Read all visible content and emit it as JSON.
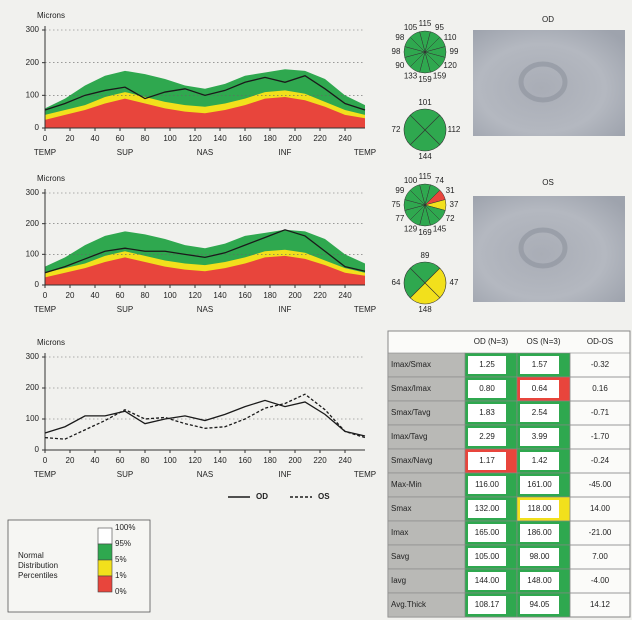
{
  "chart_data": [
    {
      "type": "line",
      "y_label": "Microns",
      "x": [
        0,
        16,
        32,
        48,
        64,
        80,
        96,
        112,
        128,
        144,
        160,
        176,
        192,
        208,
        224,
        240,
        256
      ],
      "xlim": [
        0,
        256
      ],
      "ylim": [
        0,
        300
      ],
      "xticks": [
        0,
        20,
        40,
        60,
        80,
        100,
        120,
        140,
        160,
        180,
        200,
        220,
        240
      ],
      "yticks": [
        0,
        100,
        200,
        300
      ],
      "region_ticks": [
        {
          "value": 0,
          "label": "TEMP"
        },
        {
          "value": 64,
          "label": "SUP"
        },
        {
          "value": 128,
          "label": "NAS"
        },
        {
          "value": 192,
          "label": "INF"
        },
        {
          "value": 256,
          "label": "TEMP"
        }
      ],
      "grid": true,
      "bands": [
        {
          "color": "#2fa84f",
          "values": [
            60,
            90,
            130,
            160,
            175,
            165,
            150,
            130,
            120,
            135,
            160,
            170,
            180,
            175,
            150,
            100,
            70
          ]
        },
        {
          "color": "#f2e01c",
          "values": [
            40,
            55,
            70,
            95,
            110,
            95,
            80,
            70,
            65,
            75,
            90,
            110,
            115,
            105,
            80,
            55,
            40
          ]
        },
        {
          "color": "#e8453c",
          "values": [
            25,
            40,
            55,
            75,
            90,
            75,
            60,
            50,
            45,
            55,
            70,
            90,
            95,
            85,
            65,
            40,
            30
          ]
        }
      ],
      "series": [
        {
          "name": "OD",
          "color": "#1a1a1a",
          "dash": false,
          "values": [
            55,
            75,
            100,
            115,
            125,
            90,
            110,
            120,
            100,
            115,
            140,
            155,
            140,
            160,
            120,
            75,
            55
          ]
        }
      ]
    },
    {
      "type": "line",
      "y_label": "Microns",
      "x": [
        0,
        16,
        32,
        48,
        64,
        80,
        96,
        112,
        128,
        144,
        160,
        176,
        192,
        208,
        224,
        240,
        256
      ],
      "xlim": [
        0,
        256
      ],
      "ylim": [
        0,
        300
      ],
      "xticks": [
        0,
        20,
        40,
        60,
        80,
        100,
        120,
        140,
        160,
        180,
        200,
        220,
        240
      ],
      "yticks": [
        0,
        100,
        200,
        300
      ],
      "region_ticks": [
        {
          "value": 0,
          "label": "TEMP"
        },
        {
          "value": 64,
          "label": "SUP"
        },
        {
          "value": 128,
          "label": "NAS"
        },
        {
          "value": 192,
          "label": "INF"
        },
        {
          "value": 256,
          "label": "TEMP"
        }
      ],
      "grid": true,
      "bands": [
        {
          "color": "#2fa84f",
          "values": [
            60,
            90,
            130,
            160,
            175,
            165,
            150,
            130,
            120,
            135,
            160,
            170,
            180,
            175,
            150,
            100,
            70
          ]
        },
        {
          "color": "#f2e01c",
          "values": [
            40,
            55,
            70,
            95,
            110,
            95,
            80,
            70,
            65,
            75,
            90,
            110,
            115,
            105,
            80,
            55,
            40
          ]
        },
        {
          "color": "#e8453c",
          "values": [
            25,
            40,
            55,
            75,
            90,
            75,
            60,
            50,
            45,
            55,
            70,
            90,
            95,
            85,
            65,
            40,
            30
          ]
        }
      ],
      "series": [
        {
          "name": "OS",
          "color": "#1a1a1a",
          "dash": false,
          "values": [
            40,
            60,
            85,
            110,
            120,
            110,
            110,
            100,
            90,
            105,
            130,
            155,
            180,
            160,
            110,
            60,
            45
          ]
        }
      ]
    },
    {
      "type": "line",
      "y_label": "Microns",
      "x": [
        0,
        16,
        32,
        48,
        64,
        80,
        96,
        112,
        128,
        144,
        160,
        176,
        192,
        208,
        224,
        240,
        256
      ],
      "xlim": [
        0,
        256
      ],
      "ylim": [
        0,
        300
      ],
      "xticks": [
        0,
        20,
        40,
        60,
        80,
        100,
        120,
        140,
        160,
        180,
        200,
        220,
        240
      ],
      "yticks": [
        0,
        100,
        200,
        300
      ],
      "region_ticks": [
        {
          "value": 0,
          "label": "TEMP"
        },
        {
          "value": 64,
          "label": "SUP"
        },
        {
          "value": 128,
          "label": "NAS"
        },
        {
          "value": 192,
          "label": "INF"
        },
        {
          "value": 256,
          "label": "TEMP"
        }
      ],
      "grid": true,
      "bands": [],
      "series": [
        {
          "name": "OD",
          "color": "#1a1a1a",
          "dash": false,
          "values": [
            55,
            75,
            110,
            110,
            125,
            85,
            100,
            110,
            95,
            115,
            140,
            160,
            140,
            155,
            115,
            60,
            45
          ]
        },
        {
          "name": "OS",
          "color": "#1a1a1a",
          "dash": true,
          "values": [
            40,
            35,
            65,
            95,
            130,
            100,
            105,
            85,
            70,
            75,
            100,
            135,
            150,
            180,
            130,
            60,
            40
          ]
        }
      ]
    }
  ],
  "sector_diagrams": [
    {
      "clock": {
        "values": [
          115,
          95,
          110,
          99,
          120,
          159,
          159,
          133,
          90,
          98,
          98,
          105
        ],
        "colors": [
          "#2fa84f",
          "#2fa84f",
          "#2fa84f",
          "#2fa84f",
          "#2fa84f",
          "#2fa84f",
          "#2fa84f",
          "#2fa84f",
          "#2fa84f",
          "#2fa84f",
          "#2fa84f",
          "#2fa84f"
        ]
      },
      "quadrants": {
        "values": [
          101,
          112,
          144,
          72
        ],
        "colors": [
          "#2fa84f",
          "#2fa84f",
          "#2fa84f",
          "#2fa84f"
        ]
      }
    },
    {
      "clock": {
        "values": [
          115,
          74,
          31,
          37,
          72,
          145,
          169,
          129,
          77,
          75,
          99,
          100
        ],
        "colors": [
          "#2fa84f",
          "#2fa84f",
          "#e8453c",
          "#f2e01c",
          "#2fa84f",
          "#2fa84f",
          "#2fa84f",
          "#2fa84f",
          "#2fa84f",
          "#2fa84f",
          "#2fa84f",
          "#2fa84f"
        ]
      },
      "quadrants": {
        "values": [
          89,
          47,
          148,
          64
        ],
        "colors": [
          "#2fa84f",
          "#f2e01c",
          "#f2e01c",
          "#2fa84f"
        ]
      }
    }
  ],
  "images": [
    {
      "label": "OD"
    },
    {
      "label": "OS"
    }
  ],
  "table": {
    "header": [
      "OD (N=3)",
      "OS (N=3)",
      "OD-OS"
    ],
    "rows": [
      {
        "cells": [
          "Imax/Smax",
          "1.25",
          "1.57",
          "-0.32"
        ],
        "colors": [
          "#2fa84f",
          "#2fa84f"
        ]
      },
      {
        "cells": [
          "Smax/Imax",
          "0.80",
          "0.64",
          "0.16"
        ],
        "colors": [
          "#2fa84f",
          "#e8453c"
        ]
      },
      {
        "cells": [
          "Smax/Tavg",
          "1.83",
          "2.54",
          "-0.71"
        ],
        "colors": [
          "#2fa84f",
          "#2fa84f"
        ]
      },
      {
        "cells": [
          "Imax/Tavg",
          "2.29",
          "3.99",
          "-1.70"
        ],
        "colors": [
          "#2fa84f",
          "#2fa84f"
        ]
      },
      {
        "cells": [
          "Smax/Navg",
          "1.17",
          "1.42",
          "-0.24"
        ],
        "colors": [
          "#e8453c",
          "#2fa84f"
        ]
      },
      {
        "cells": [
          "Max-Min",
          "116.00",
          "161.00",
          "-45.00"
        ],
        "colors": [
          "#2fa84f",
          "#2fa84f"
        ]
      },
      {
        "cells": [
          "Smax",
          "132.00",
          "118.00",
          "14.00"
        ],
        "colors": [
          "#2fa84f",
          "#f2e01c"
        ]
      },
      {
        "cells": [
          "Imax",
          "165.00",
          "186.00",
          "-21.00"
        ],
        "colors": [
          "#2fa84f",
          "#2fa84f"
        ]
      },
      {
        "cells": [
          "Savg",
          "105.00",
          "98.00",
          "7.00"
        ],
        "colors": [
          "#2fa84f",
          "#2fa84f"
        ]
      },
      {
        "cells": [
          "Iavg",
          "144.00",
          "148.00",
          "-4.00"
        ],
        "colors": [
          "#2fa84f",
          "#2fa84f"
        ]
      },
      {
        "cells": [
          "Avg.Thick",
          "108.17",
          "94.05",
          "14.12"
        ],
        "colors": [
          "#2fa84f",
          "#2fa84f"
        ]
      }
    ]
  },
  "percentile_legend": {
    "title_lines": [
      "Normal",
      "Distribution",
      "Percentiles"
    ],
    "labels": [
      "100%",
      "95%",
      "5%",
      "1%",
      "0%"
    ],
    "colors": [
      "#ffffff",
      "#2fa84f",
      "#f2e01c",
      "#e8453c"
    ]
  }
}
